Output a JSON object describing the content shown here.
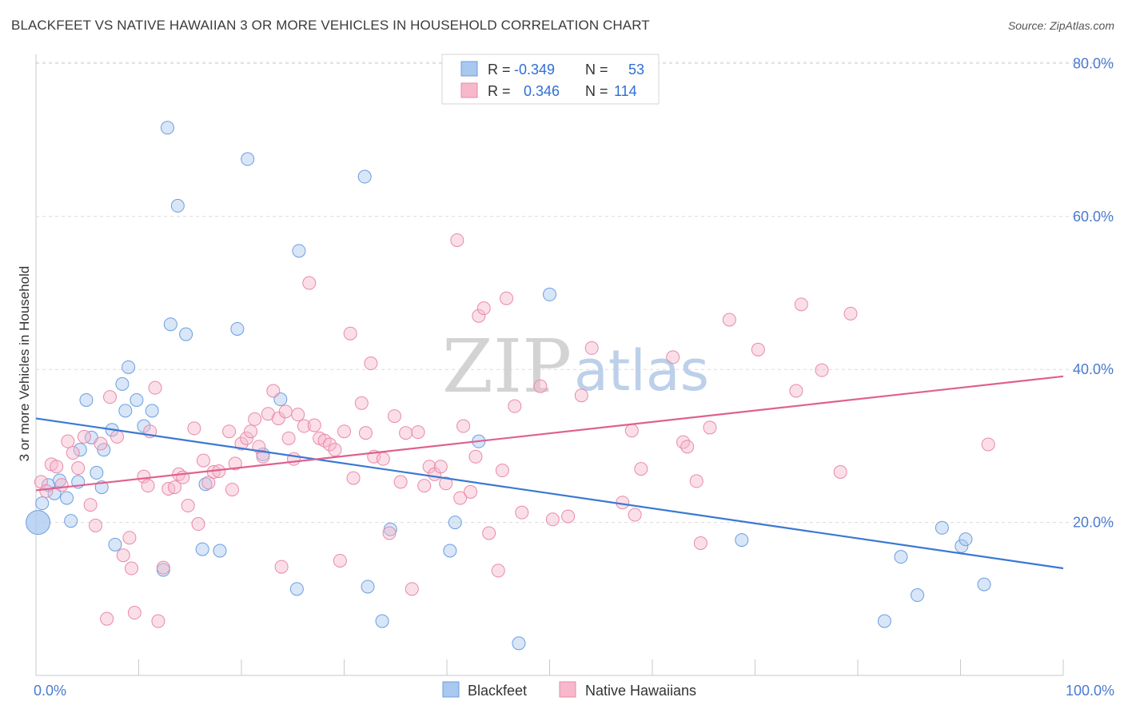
{
  "title": "BLACKFEET VS NATIVE HAWAIIAN 3 OR MORE VEHICLES IN HOUSEHOLD CORRELATION CHART",
  "source": "Source: ZipAtlas.com",
  "watermark": {
    "zip": "ZIP",
    "atlas": "atlas"
  },
  "legend": {
    "rows": [
      {
        "r_label": "R =",
        "r_value": "-0.349",
        "n_label": "N =",
        "n_value": "53",
        "color": "#a8c8f0"
      },
      {
        "r_label": "R =",
        "r_value": "0.346",
        "n_label": "N =",
        "n_value": "114",
        "color": "#f7b8cb"
      }
    ]
  },
  "bottom_legend": [
    {
      "label": "Blackfeet",
      "color": "#a8c8f0"
    },
    {
      "label": "Native Hawaiians",
      "color": "#f7b8cb"
    }
  ],
  "chart_data": {
    "type": "scatter",
    "title": "BLACKFEET VS NATIVE HAWAIIAN 3 OR MORE VEHICLES IN HOUSEHOLD CORRELATION CHART",
    "xlabel": "",
    "ylabel": "3 or more Vehicles in Household",
    "xlim": [
      0,
      100
    ],
    "ylim": [
      0,
      82
    ],
    "x_tick_labels": [
      {
        "value": 0,
        "label": "0.0%"
      },
      {
        "value": 100,
        "label": "100.0%"
      }
    ],
    "y_tick_labels": [
      {
        "value": 20,
        "label": "20.0%"
      },
      {
        "value": 40,
        "label": "40.0%"
      },
      {
        "value": 60,
        "label": "60.0%"
      },
      {
        "value": 80,
        "label": "80.0%"
      }
    ],
    "grid": true,
    "series": [
      {
        "name": "Blackfeet",
        "color": "#a8c8f0",
        "stroke": "#6b9ee0",
        "trend": {
          "x": [
            0,
            100
          ],
          "y": [
            33.6,
            14.0
          ],
          "color": "#3a78d4"
        },
        "points": [
          [
            0.2,
            20.0
          ],
          [
            0.6,
            22.5
          ],
          [
            1.2,
            24.9
          ],
          [
            1.8,
            23.8
          ],
          [
            2.3,
            25.5
          ],
          [
            3.0,
            23.2
          ],
          [
            3.4,
            20.2
          ],
          [
            4.1,
            25.3
          ],
          [
            4.3,
            29.5
          ],
          [
            4.9,
            36.0
          ],
          [
            5.4,
            31.1
          ],
          [
            5.9,
            26.5
          ],
          [
            6.4,
            24.6
          ],
          [
            6.6,
            29.5
          ],
          [
            7.4,
            32.1
          ],
          [
            7.7,
            17.1
          ],
          [
            8.4,
            38.1
          ],
          [
            8.7,
            34.6
          ],
          [
            9.0,
            40.3
          ],
          [
            9.8,
            36.0
          ],
          [
            10.5,
            32.6
          ],
          [
            11.3,
            34.6
          ],
          [
            12.4,
            13.8
          ],
          [
            12.8,
            71.6
          ],
          [
            13.1,
            45.9
          ],
          [
            13.8,
            61.4
          ],
          [
            14.6,
            44.6
          ],
          [
            16.2,
            16.5
          ],
          [
            16.5,
            25.0
          ],
          [
            17.9,
            16.3
          ],
          [
            19.6,
            45.3
          ],
          [
            20.6,
            67.5
          ],
          [
            22.1,
            28.9
          ],
          [
            23.8,
            36.1
          ],
          [
            25.4,
            11.3
          ],
          [
            25.6,
            55.5
          ],
          [
            32.0,
            65.2
          ],
          [
            32.3,
            11.6
          ],
          [
            33.7,
            7.1
          ],
          [
            34.5,
            19.1
          ],
          [
            40.3,
            16.3
          ],
          [
            40.8,
            20.0
          ],
          [
            43.1,
            30.6
          ],
          [
            47.0,
            4.2
          ],
          [
            50.0,
            49.8
          ],
          [
            68.7,
            17.7
          ],
          [
            82.6,
            7.1
          ],
          [
            84.2,
            15.5
          ],
          [
            85.8,
            10.5
          ],
          [
            88.2,
            19.3
          ],
          [
            90.1,
            16.9
          ],
          [
            90.5,
            17.8
          ],
          [
            92.3,
            11.9
          ]
        ]
      },
      {
        "name": "Native Hawaiians",
        "color": "#f7b8cb",
        "stroke": "#e88aa8",
        "trend": {
          "x": [
            0,
            100
          ],
          "y": [
            24.2,
            39.1
          ],
          "color": "#e0608e"
        },
        "points": [
          [
            0.5,
            25.3
          ],
          [
            1.0,
            24.1
          ],
          [
            1.5,
            27.6
          ],
          [
            2.0,
            27.3
          ],
          [
            2.5,
            24.9
          ],
          [
            3.1,
            30.6
          ],
          [
            3.6,
            29.1
          ],
          [
            4.1,
            27.1
          ],
          [
            4.7,
            31.2
          ],
          [
            5.3,
            22.3
          ],
          [
            5.8,
            19.6
          ],
          [
            6.3,
            30.3
          ],
          [
            6.9,
            7.4
          ],
          [
            7.2,
            36.4
          ],
          [
            7.9,
            31.2
          ],
          [
            8.5,
            15.7
          ],
          [
            9.1,
            18.0
          ],
          [
            9.3,
            14.0
          ],
          [
            9.6,
            8.2
          ],
          [
            10.5,
            26.0
          ],
          [
            10.9,
            24.8
          ],
          [
            11.1,
            31.9
          ],
          [
            11.6,
            37.6
          ],
          [
            11.9,
            7.1
          ],
          [
            12.4,
            14.1
          ],
          [
            12.9,
            24.4
          ],
          [
            13.5,
            24.6
          ],
          [
            13.9,
            26.3
          ],
          [
            14.3,
            25.9
          ],
          [
            14.8,
            22.2
          ],
          [
            15.4,
            32.3
          ],
          [
            15.8,
            19.8
          ],
          [
            16.3,
            28.1
          ],
          [
            16.8,
            25.2
          ],
          [
            17.3,
            26.6
          ],
          [
            17.8,
            26.7
          ],
          [
            18.8,
            31.9
          ],
          [
            19.1,
            24.3
          ],
          [
            19.4,
            27.7
          ],
          [
            20.0,
            30.3
          ],
          [
            20.5,
            31.0
          ],
          [
            20.9,
            31.9
          ],
          [
            21.3,
            33.5
          ],
          [
            21.7,
            29.9
          ],
          [
            22.1,
            28.6
          ],
          [
            22.6,
            34.2
          ],
          [
            23.1,
            37.2
          ],
          [
            23.6,
            33.6
          ],
          [
            23.9,
            14.2
          ],
          [
            24.3,
            34.5
          ],
          [
            24.6,
            31.0
          ],
          [
            25.1,
            28.3
          ],
          [
            25.5,
            34.1
          ],
          [
            26.1,
            32.6
          ],
          [
            26.6,
            51.3
          ],
          [
            27.1,
            32.7
          ],
          [
            27.6,
            31.0
          ],
          [
            28.1,
            30.7
          ],
          [
            28.6,
            30.2
          ],
          [
            29.1,
            29.5
          ],
          [
            29.6,
            15.0
          ],
          [
            30.0,
            31.9
          ],
          [
            30.6,
            44.7
          ],
          [
            30.9,
            25.8
          ],
          [
            31.7,
            35.6
          ],
          [
            32.1,
            31.7
          ],
          [
            32.6,
            40.8
          ],
          [
            32.9,
            28.6
          ],
          [
            33.8,
            28.3
          ],
          [
            34.4,
            18.6
          ],
          [
            34.9,
            33.9
          ],
          [
            35.5,
            25.3
          ],
          [
            36.0,
            31.7
          ],
          [
            36.6,
            11.3
          ],
          [
            37.2,
            31.8
          ],
          [
            37.8,
            24.8
          ],
          [
            38.3,
            27.3
          ],
          [
            38.8,
            26.3
          ],
          [
            39.4,
            27.3
          ],
          [
            39.9,
            25.1
          ],
          [
            41.0,
            56.9
          ],
          [
            41.3,
            23.2
          ],
          [
            41.6,
            32.6
          ],
          [
            42.3,
            24.0
          ],
          [
            42.8,
            28.6
          ],
          [
            43.1,
            47.0
          ],
          [
            43.6,
            48.0
          ],
          [
            44.1,
            18.6
          ],
          [
            45.0,
            13.7
          ],
          [
            45.4,
            26.8
          ],
          [
            45.8,
            49.3
          ],
          [
            46.6,
            35.2
          ],
          [
            47.3,
            21.3
          ],
          [
            49.1,
            37.8
          ],
          [
            50.3,
            20.4
          ],
          [
            51.8,
            20.8
          ],
          [
            53.1,
            36.6
          ],
          [
            54.1,
            42.8
          ],
          [
            57.1,
            22.6
          ],
          [
            58.0,
            32.0
          ],
          [
            58.3,
            21.0
          ],
          [
            58.9,
            27.0
          ],
          [
            62.0,
            41.6
          ],
          [
            63.0,
            30.5
          ],
          [
            63.4,
            29.9
          ],
          [
            64.3,
            25.4
          ],
          [
            64.7,
            17.3
          ],
          [
            65.6,
            32.4
          ],
          [
            67.5,
            46.5
          ],
          [
            70.3,
            42.6
          ],
          [
            74.0,
            37.2
          ],
          [
            74.5,
            48.5
          ],
          [
            76.5,
            39.9
          ],
          [
            78.3,
            26.6
          ],
          [
            79.3,
            47.3
          ],
          [
            92.7,
            30.2
          ]
        ]
      }
    ]
  }
}
